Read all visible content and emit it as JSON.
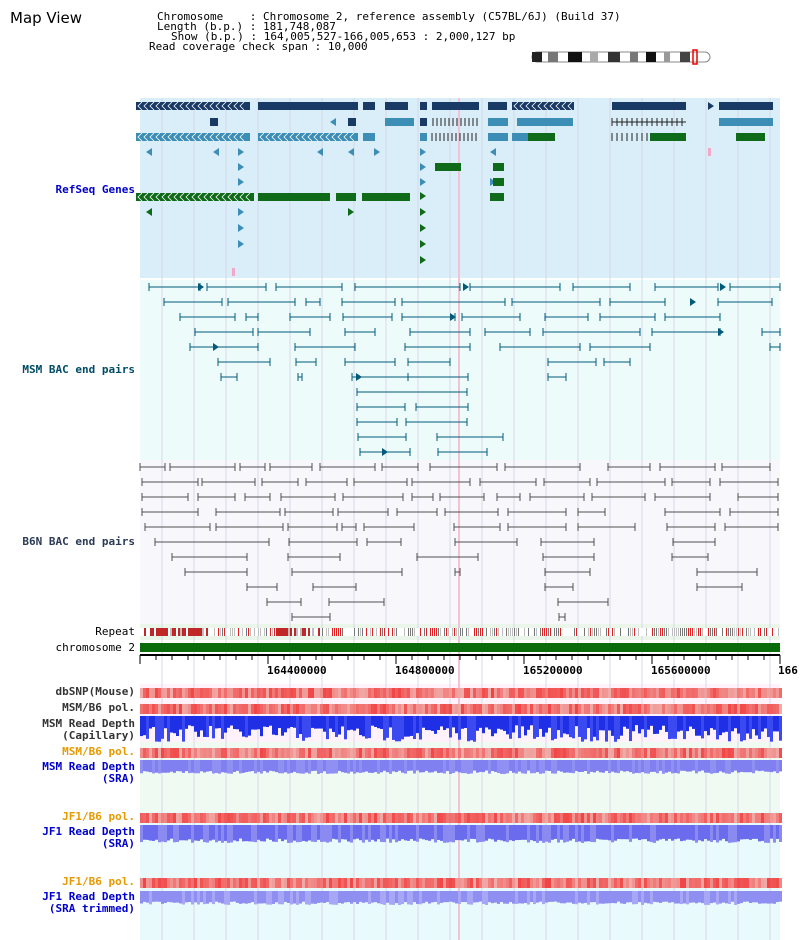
{
  "title": "Map View",
  "info": {
    "chromosome_key": "Chromosome",
    "chromosome_val": "Chromosome 2, reference assembly (C57BL/6J) (Build 37)",
    "length_key": "Length (b.p.)",
    "length_val": "181,748,087",
    "show_key": "Show (b.p.)",
    "show_val": "164,005,527-166,005,653 : 2,000,127 bp",
    "span_key": "Read coverage check span",
    "span_val": "10,000"
  },
  "tracks": {
    "refseq": "RefSeq Genes",
    "msm_bac": "MSM BAC end pairs",
    "b6n_bac": "B6N BAC end pairs",
    "repeat": "Repeat",
    "chromosome": "chromosome 2",
    "dbsnp": "dbSNP(Mouse)",
    "msm_b6_pol_1": "MSM/B6 pol.",
    "msm_read_depth_cap_1": "MSM Read Depth",
    "msm_read_depth_cap_2": "(Capillary)",
    "msm_b6_pol_2": "MSM/B6 pol.",
    "msm_read_depth_sra_1": "MSM Read Depth",
    "msm_read_depth_sra_2": "(SRA)",
    "jf1_b6_pol_1": "JF1/B6 pol.",
    "jf1_read_depth_sra_1": "JF1 Read Depth",
    "jf1_read_depth_sra_2": "(SRA)",
    "jf1_b6_pol_2": "JF1/B6 pol.",
    "jf1_read_depth_trim_1": "JF1 Read Depth",
    "jf1_read_depth_trim_2": "(SRA trimmed)"
  },
  "ruler": {
    "ticks": [
      "164400000",
      "164800000",
      "165200000",
      "165600000",
      "166"
    ]
  },
  "colors": {
    "refseq_bg": "#d9eef8",
    "bac_bg": "#eefbfb",
    "navy": "#1a3a66",
    "steel": "#3d8eb7",
    "green": "#0f6b1a",
    "teal_line": "#005a78",
    "gray_line": "#4f4f4f",
    "chromosome_bar": "#0a6b0a",
    "pol_red": "#e8463c",
    "depth_blue": "#2a2ae6",
    "depth_violet": "#7b7bf0"
  }
}
